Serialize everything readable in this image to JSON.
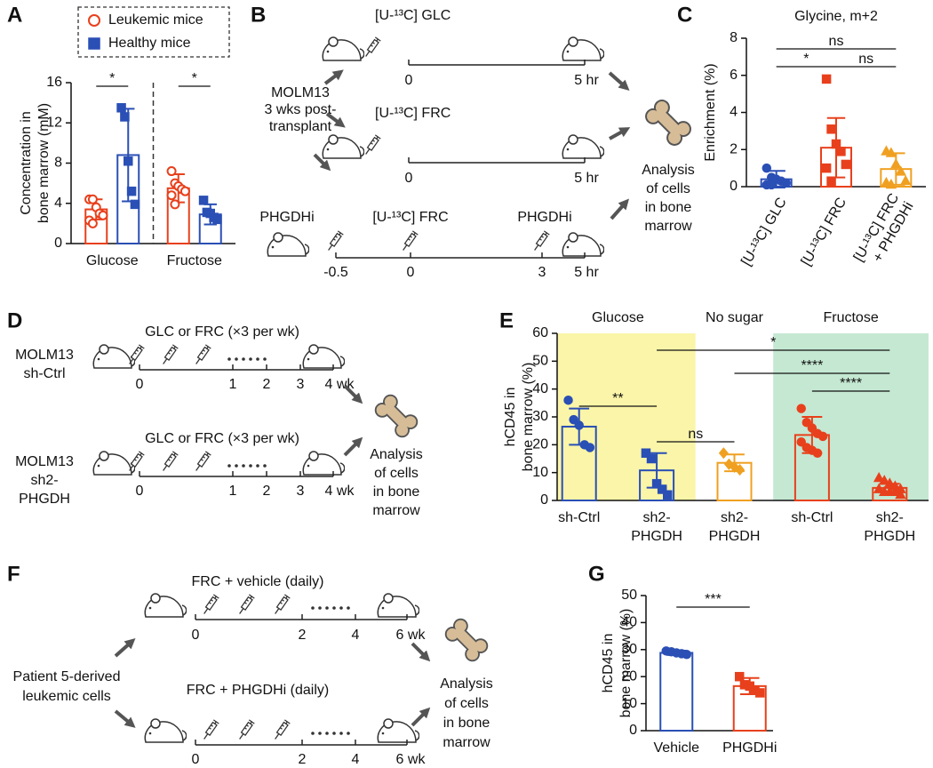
{
  "chart_data": [
    {
      "type": "bar",
      "panel": "A",
      "ylabel": [
        "Concentration in",
        "bone marrow (mM)"
      ],
      "categories": [
        "Glucose",
        "Fructose"
      ],
      "series": [
        {
          "name": "Leukemic mice",
          "color": "#e8401c",
          "marker": "open-circle",
          "values": [
            3.4,
            5.5
          ],
          "errors": [
            1.0,
            1.4
          ],
          "points": [
            [
              4.4,
              4.4,
              3.6,
              3.0,
              2.8,
              2.3,
              2.0
            ],
            [
              7.2,
              6.0,
              5.7,
              5.4,
              5.2,
              4.8,
              3.9
            ]
          ]
        },
        {
          "name": "Healthy mice",
          "color": "#2a4fb5",
          "marker": "square",
          "values": [
            8.8,
            2.9
          ],
          "errors": [
            4.6,
            1.0
          ],
          "points": [
            [
              13.5,
              12.6,
              8.2,
              5.2,
              3.9
            ],
            [
              4.3,
              3.1,
              3.0,
              2.6,
              2.4
            ]
          ]
        }
      ],
      "ylim": [
        0,
        16
      ],
      "yticks": [
        0,
        4,
        8,
        12,
        16
      ],
      "legend": "top",
      "annotations": [
        "*",
        "*"
      ]
    },
    {
      "type": "bar",
      "panel": "C",
      "title": "Glycine, m+2",
      "ylabel": [
        "Enrichment (%)"
      ],
      "categories": [
        [
          "[U-¹³C] GLC"
        ],
        [
          "[U-¹³C] FRC"
        ],
        [
          "[U-¹³C] FRC",
          "+ PHGDHi"
        ]
      ],
      "colors": [
        "#2a4fb5",
        "#e8401c",
        "#f0a020"
      ],
      "markers": [
        "circle",
        "square",
        "triangle"
      ],
      "values": [
        0.4,
        2.1,
        0.95
      ],
      "errors": [
        0.45,
        1.6,
        0.85
      ],
      "points": [
        [
          1.0,
          0.5,
          0.4,
          0.3,
          0.2,
          0.1,
          0.1
        ],
        [
          5.8,
          3.1,
          2.3,
          1.9,
          1.2,
          1.0,
          0.3
        ],
        [
          1.9,
          1.8,
          1.2,
          0.8,
          0.3,
          0.2,
          0.1
        ]
      ],
      "ylim": [
        0,
        8
      ],
      "yticks": [
        0,
        2,
        4,
        6,
        8
      ],
      "annotations": [
        "ns",
        "*",
        "ns"
      ]
    },
    {
      "type": "bar",
      "panel": "E",
      "ylabel": [
        "hCD45 in",
        "bone marrow (%)"
      ],
      "groups": [
        "Glucose",
        "No sugar",
        "Fructose"
      ],
      "group_colors": [
        "#faf5a8",
        "#ffffff",
        "#c5e8d2"
      ],
      "categories": [
        [
          "sh-Ctrl"
        ],
        [
          "sh2-",
          "PHGDH"
        ],
        [
          "sh2-",
          "PHGDH"
        ],
        [
          "sh-Ctrl"
        ],
        [
          "sh2-",
          "PHGDH"
        ]
      ],
      "colors": [
        "#2a4fb5",
        "#2a4fb5",
        "#f0a020",
        "#e8401c",
        "#e8401c"
      ],
      "markers": [
        "circle",
        "square",
        "diamond",
        "circle",
        "triangle"
      ],
      "values": [
        26.5,
        10.8,
        13.5,
        23.5,
        4.5
      ],
      "errors": [
        6.5,
        6.2,
        3.0,
        6.5,
        1.5
      ],
      "points": [
        [
          36,
          29,
          27,
          20,
          19
        ],
        [
          17,
          15,
          6,
          4,
          2
        ],
        [
          17,
          13,
          12,
          11
        ],
        [
          33,
          28,
          26,
          24,
          23,
          21,
          19,
          18,
          17
        ],
        [
          8,
          7,
          6,
          5,
          4,
          4,
          3,
          3,
          3,
          2
        ]
      ],
      "ylim": [
        0,
        60
      ],
      "yticks": [
        0,
        10,
        20,
        30,
        40,
        50,
        60
      ],
      "annotations": [
        "**",
        "ns",
        "*",
        "****",
        "****"
      ]
    },
    {
      "type": "bar",
      "panel": "G",
      "ylabel": [
        "hCD45 in",
        "bone marrow (%)"
      ],
      "categories": [
        "Vehicle",
        "PHGDHi"
      ],
      "colors": [
        "#2a4fb5",
        "#e8401c"
      ],
      "markers": [
        "circle",
        "square"
      ],
      "values": [
        28.8,
        16.5
      ],
      "errors": [
        0.8,
        3.0
      ],
      "points": [
        [
          29.5,
          29.2,
          28.8,
          28.5,
          28.2
        ],
        [
          20,
          17,
          16.5,
          15,
          14
        ]
      ],
      "ylim": [
        0,
        50
      ],
      "yticks": [
        0,
        10,
        20,
        30,
        40,
        50
      ],
      "annotations": [
        "***"
      ]
    }
  ],
  "diagram_b": {
    "panel": "B",
    "source": [
      "MOLM13",
      "3 wks post-",
      "transplant"
    ],
    "rows": [
      {
        "labels": [
          "[U-¹³C] GLC"
        ],
        "ticks": [
          "0",
          "5 hr"
        ]
      },
      {
        "labels": [
          "[U-¹³C] FRC"
        ],
        "ticks": [
          "0",
          "5 hr"
        ]
      },
      {
        "labels": [
          "PHGDHi",
          "[U-¹³C] FRC",
          "PHGDHi"
        ],
        "ticks": [
          "-0.5",
          "0",
          "3",
          "5 hr"
        ]
      }
    ],
    "outcome": [
      "Analysis",
      "of cells",
      "in bone",
      "marrow"
    ]
  },
  "diagram_d": {
    "panel": "D",
    "rows": [
      {
        "group": [
          "MOLM13",
          "sh-Ctrl"
        ],
        "label": "GLC or FRC (×3 per wk)",
        "ticks": [
          "0",
          "1",
          "2",
          "3",
          "4 wk"
        ]
      },
      {
        "group": [
          "MOLM13",
          "sh2-",
          "PHGDH"
        ],
        "label": "GLC or FRC (×3 per wk)",
        "ticks": [
          "0",
          "1",
          "2",
          "3",
          "4 wk"
        ]
      }
    ],
    "outcome": [
      "Analysis",
      "of cells",
      "in bone",
      "marrow"
    ]
  },
  "diagram_f": {
    "panel": "F",
    "source": [
      "Patient 5-derived",
      "leukemic cells"
    ],
    "rows": [
      {
        "label": "FRC + vehicle (daily)",
        "ticks": [
          "0",
          "2",
          "4",
          "6 wk"
        ]
      },
      {
        "label": "FRC + PHGDHi (daily)",
        "ticks": [
          "0",
          "2",
          "4",
          "6 wk"
        ]
      }
    ],
    "outcome": [
      "Analysis",
      "of cells",
      "in bone",
      "marrow"
    ]
  }
}
